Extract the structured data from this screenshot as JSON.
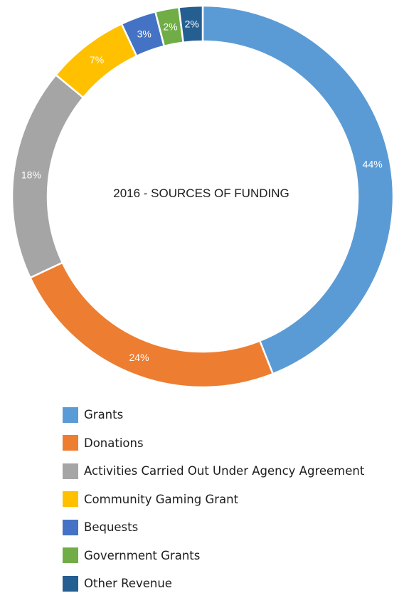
{
  "chart_data": {
    "type": "pie",
    "title": "2016 - SOURCES OF FUNDING",
    "categories": [
      "Grants",
      "Donations",
      "Activities Carried Out Under Agency Agreement",
      "Community Gaming Grant",
      "Bequests",
      "Government Grants",
      "Other Revenue"
    ],
    "values": [
      44,
      24,
      18,
      7,
      3,
      2,
      2
    ],
    "value_labels": [
      "44%",
      "24%",
      "18%",
      "7%",
      "3%",
      "2%",
      "2%"
    ],
    "colors": [
      "#5b9bd5",
      "#ed7d31",
      "#a5a5a5",
      "#ffc000",
      "#4472c4",
      "#70ad47",
      "#255e91"
    ],
    "style": "doughnut",
    "legend_position": "bottom"
  }
}
